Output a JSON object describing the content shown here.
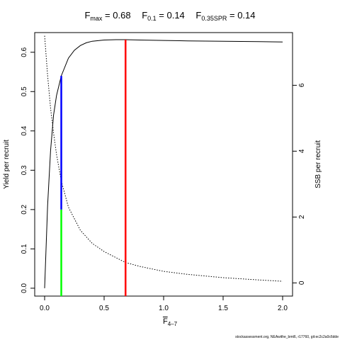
{
  "title": {
    "fmax_label": "F",
    "fmax_sub": "max",
    "fmax_value": " = 0.68",
    "f01_label": "F",
    "f01_sub": "0.1",
    "f01_value": " = 0.14",
    "fspr_label": "F",
    "fspr_sub": "0.35SPR",
    "fspr_value": " = 0.14"
  },
  "footer": "stockassessment.org, NEAwithe_bmt6, r17760, git:ec2c2a0c6dde",
  "chart_data": {
    "type": "line",
    "xlabel_main": "F",
    "xlabel_sub": "4–7",
    "ylabel_left": "Yield per recruit",
    "ylabel_right": "SSB per recruit",
    "xlim": [
      0,
      2.0
    ],
    "ylim_left": [
      -0.02,
      0.65
    ],
    "ylim_right": [
      -0.4,
      7.6
    ],
    "xticks": [
      "0.0",
      "0.5",
      "1.0",
      "1.5",
      "2.0"
    ],
    "yticks_left": [
      "0.0",
      "0.1",
      "0.2",
      "0.3",
      "0.4",
      "0.5",
      "0.6"
    ],
    "yticks_right": [
      "0",
      "2",
      "4",
      "6"
    ],
    "series": [
      {
        "axis": "left",
        "style": "solid",
        "color": "#000000",
        "x": [
          0,
          0.025,
          0.05,
          0.075,
          0.1,
          0.14,
          0.2,
          0.25,
          0.3,
          0.35,
          0.4,
          0.5,
          0.6,
          0.68,
          0.8,
          1.0,
          1.2,
          1.5,
          1.8,
          2.0
        ],
        "y": [
          0,
          0.21,
          0.35,
          0.44,
          0.49,
          0.54,
          0.585,
          0.605,
          0.617,
          0.624,
          0.628,
          0.631,
          0.632,
          0.632,
          0.631,
          0.63,
          0.629,
          0.628,
          0.627,
          0.626
        ]
      },
      {
        "axis": "right",
        "style": "dotted",
        "color": "#000000",
        "x": [
          0,
          0.025,
          0.05,
          0.075,
          0.1,
          0.14,
          0.2,
          0.3,
          0.4,
          0.5,
          0.68,
          0.8,
          1.0,
          1.2,
          1.5,
          1.8,
          2.0
        ],
        "y": [
          7.5,
          6.3,
          5.3,
          4.55,
          3.9,
          3.1,
          2.3,
          1.6,
          1.2,
          0.95,
          0.62,
          0.5,
          0.35,
          0.26,
          0.16,
          0.09,
          0.05
        ]
      }
    ],
    "reference_lines": [
      {
        "name": "Fmax",
        "x": 0.68,
        "y_from": -0.02,
        "y_to": 0.632,
        "color": "#ff0000",
        "width": 2.5
      },
      {
        "name": "F0.1 yield",
        "x": 0.14,
        "y_from": 0.2,
        "y_to": 0.54,
        "color": "#0000ff",
        "width": 2.5
      },
      {
        "name": "F0.35SPR SSB",
        "x": 0.14,
        "y_from": -0.02,
        "y_to": 0.2,
        "color": "#00ff00",
        "width": 2.5
      }
    ]
  }
}
